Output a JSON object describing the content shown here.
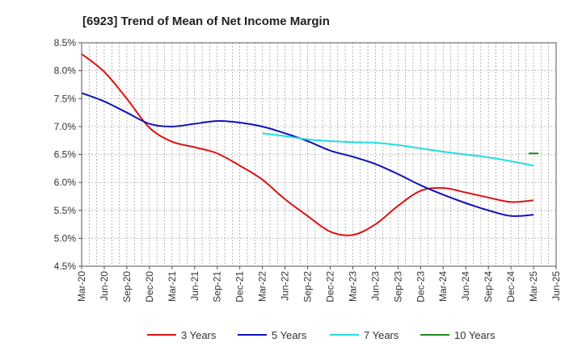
{
  "chart_data": {
    "type": "line",
    "title": "[6923]  Trend of Mean of Net Income Margin",
    "xlabel": "",
    "ylabel": "",
    "x_ticks": [
      "Mar-20",
      "Jun-20",
      "Sep-20",
      "Dec-20",
      "Mar-21",
      "Jun-21",
      "Sep-21",
      "Dec-21",
      "Mar-22",
      "Jun-22",
      "Sep-22",
      "Dec-22",
      "Mar-23",
      "Jun-23",
      "Sep-23",
      "Dec-23",
      "Mar-24",
      "Jun-24",
      "Sep-24",
      "Dec-24",
      "Mar-25",
      "Jun-25"
    ],
    "y_ticks": [
      "4.5%",
      "5.0%",
      "5.5%",
      "6.0%",
      "6.5%",
      "7.0%",
      "7.5%",
      "8.0%",
      "8.5%"
    ],
    "ylim": [
      4.5,
      8.5
    ],
    "grid": true,
    "legend_position": "bottom",
    "series": [
      {
        "name": "3 Years",
        "color": "#dd1111",
        "points": [
          [
            "Mar-20",
            8.3
          ],
          [
            "Jun-20",
            7.98
          ],
          [
            "Sep-20",
            7.5
          ],
          [
            "Dec-20",
            6.98
          ],
          [
            "Mar-21",
            6.73
          ],
          [
            "Jun-21",
            6.63
          ],
          [
            "Sep-21",
            6.52
          ],
          [
            "Dec-21",
            6.3
          ],
          [
            "Mar-22",
            6.05
          ],
          [
            "Jun-22",
            5.7
          ],
          [
            "Sep-22",
            5.4
          ],
          [
            "Dec-22",
            5.12
          ],
          [
            "Mar-23",
            5.06
          ],
          [
            "Jun-23",
            5.25
          ],
          [
            "Sep-23",
            5.58
          ],
          [
            "Dec-23",
            5.85
          ],
          [
            "Mar-24",
            5.9
          ],
          [
            "Jun-24",
            5.82
          ],
          [
            "Sep-24",
            5.73
          ],
          [
            "Dec-24",
            5.65
          ],
          [
            "Mar-25",
            5.68
          ]
        ]
      },
      {
        "name": "5 Years",
        "color": "#1010bb",
        "points": [
          [
            "Mar-20",
            7.6
          ],
          [
            "Jun-20",
            7.45
          ],
          [
            "Sep-20",
            7.25
          ],
          [
            "Dec-20",
            7.05
          ],
          [
            "Mar-21",
            7.0
          ],
          [
            "Jun-21",
            7.05
          ],
          [
            "Sep-21",
            7.1
          ],
          [
            "Dec-21",
            7.07
          ],
          [
            "Mar-22",
            7.0
          ],
          [
            "Jun-22",
            6.88
          ],
          [
            "Sep-22",
            6.74
          ],
          [
            "Dec-22",
            6.57
          ],
          [
            "Mar-23",
            6.46
          ],
          [
            "Jun-23",
            6.33
          ],
          [
            "Sep-23",
            6.15
          ],
          [
            "Dec-23",
            5.95
          ],
          [
            "Mar-24",
            5.78
          ],
          [
            "Jun-24",
            5.63
          ],
          [
            "Sep-24",
            5.5
          ],
          [
            "Dec-24",
            5.4
          ],
          [
            "Mar-25",
            5.42
          ]
        ]
      },
      {
        "name": "7 Years",
        "color": "#22dddd",
        "points": [
          [
            "Mar-22",
            6.88
          ],
          [
            "Jun-22",
            6.83
          ],
          [
            "Sep-22",
            6.77
          ],
          [
            "Dec-22",
            6.74
          ],
          [
            "Mar-23",
            6.72
          ],
          [
            "Jun-23",
            6.71
          ],
          [
            "Sep-23",
            6.67
          ],
          [
            "Dec-23",
            6.61
          ],
          [
            "Mar-24",
            6.55
          ],
          [
            "Jun-24",
            6.5
          ],
          [
            "Sep-24",
            6.45
          ],
          [
            "Dec-24",
            6.38
          ],
          [
            "Mar-25",
            6.3
          ]
        ]
      },
      {
        "name": "10 Years",
        "color": "#228822",
        "points": [
          [
            "Mar-25",
            6.52
          ]
        ]
      }
    ]
  }
}
